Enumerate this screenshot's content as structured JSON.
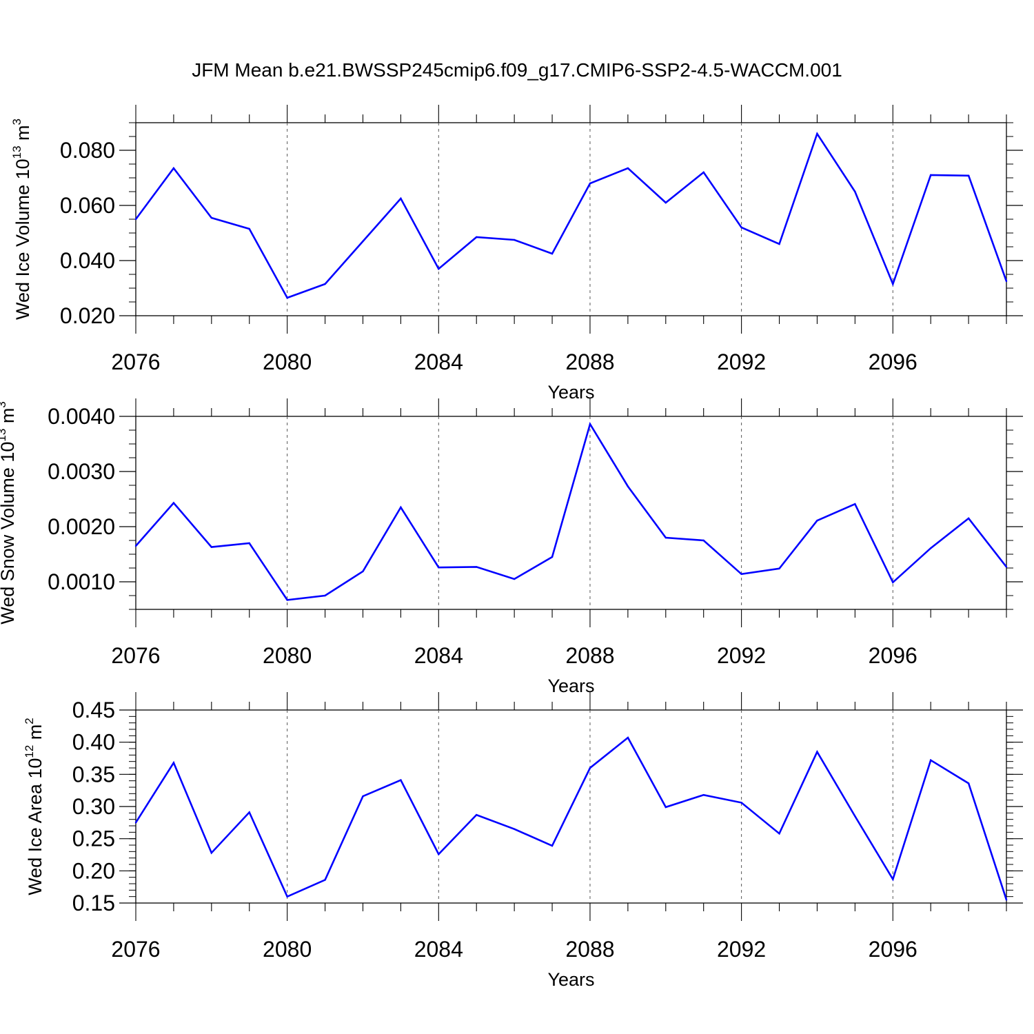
{
  "title": "JFM Mean b.e21.BWSSP245cmip6.f09_g17.CMIP6-SSP2-4.5-WACCM.001",
  "chart_data": [
    {
      "type": "line",
      "title": "",
      "xlabel": "Years",
      "ylabel": "Wed Ice Volume 10",
      "ylabel_exp": "13",
      "ylabel_unit": " m",
      "ylabel_unit_exp": "3",
      "xlim": [
        2076,
        2099
      ],
      "ylim": [
        0.02,
        0.09
      ],
      "x_ticks": [
        2076,
        2080,
        2084,
        2088,
        2092,
        2096
      ],
      "x_tick_labels": [
        "2076",
        "2080",
        "2084",
        "2088",
        "2092",
        "2096"
      ],
      "y_ticks": [
        0.02,
        0.04,
        0.06,
        0.08
      ],
      "y_tick_labels": [
        "0.020",
        "0.040",
        "0.060",
        "0.080"
      ],
      "y_minor_step": 0.005,
      "grid": "vertical dashed at major x ticks",
      "line_color": "#0000ff",
      "x": [
        2076,
        2077,
        2078,
        2079,
        2080,
        2081,
        2082,
        2083,
        2084,
        2085,
        2086,
        2087,
        2088,
        2089,
        2090,
        2091,
        2092,
        2093,
        2094,
        2095,
        2096,
        2097,
        2098,
        2099
      ],
      "values": [
        0.055,
        0.0735,
        0.0555,
        0.0515,
        0.0265,
        0.0315,
        0.047,
        0.0625,
        0.037,
        0.0485,
        0.0475,
        0.0425,
        0.068,
        0.0735,
        0.061,
        0.072,
        0.052,
        0.046,
        0.086,
        0.065,
        0.0315,
        0.071,
        0.0708,
        0.0325
      ]
    },
    {
      "type": "line",
      "title": "",
      "xlabel": "Years",
      "ylabel": "Wed Snow Volume 10",
      "ylabel_exp": "13",
      "ylabel_unit": " m",
      "ylabel_unit_exp": "3",
      "xlim": [
        2076,
        2099
      ],
      "ylim": [
        0.0005,
        0.004
      ],
      "x_ticks": [
        2076,
        2080,
        2084,
        2088,
        2092,
        2096
      ],
      "x_tick_labels": [
        "2076",
        "2080",
        "2084",
        "2088",
        "2092",
        "2096"
      ],
      "y_ticks": [
        0.001,
        0.002,
        0.003,
        0.004
      ],
      "y_tick_labels": [
        "0.0010",
        "0.0020",
        "0.0030",
        "0.0040"
      ],
      "y_minor_step": 0.00025,
      "grid": "vertical dashed at major x ticks",
      "line_color": "#0000ff",
      "x": [
        2076,
        2077,
        2078,
        2079,
        2080,
        2081,
        2082,
        2083,
        2084,
        2085,
        2086,
        2087,
        2088,
        2089,
        2090,
        2091,
        2092,
        2093,
        2094,
        2095,
        2096,
        2097,
        2098,
        2099
      ],
      "values": [
        0.00165,
        0.00243,
        0.00163,
        0.0017,
        0.00067,
        0.00075,
        0.00119,
        0.00235,
        0.00126,
        0.00127,
        0.00105,
        0.00145,
        0.00386,
        0.00273,
        0.0018,
        0.00175,
        0.00114,
        0.00124,
        0.00211,
        0.00241,
        0.00099,
        0.00161,
        0.00215,
        0.00127
      ]
    },
    {
      "type": "line",
      "title": "",
      "xlabel": "Years",
      "ylabel": "Wed Ice Area 10",
      "ylabel_exp": "12",
      "ylabel_unit": " m",
      "ylabel_unit_exp": "2",
      "xlim": [
        2076,
        2099
      ],
      "ylim": [
        0.15,
        0.45
      ],
      "x_ticks": [
        2076,
        2080,
        2084,
        2088,
        2092,
        2096
      ],
      "x_tick_labels": [
        "2076",
        "2080",
        "2084",
        "2088",
        "2092",
        "2096"
      ],
      "y_ticks": [
        0.15,
        0.2,
        0.25,
        0.3,
        0.35,
        0.4,
        0.45
      ],
      "y_tick_labels": [
        "0.15",
        "0.20",
        "0.25",
        "0.30",
        "0.35",
        "0.40",
        "0.45"
      ],
      "y_minor_step": 0.01,
      "grid": "vertical dashed at major x ticks",
      "line_color": "#0000ff",
      "x": [
        2076,
        2077,
        2078,
        2079,
        2080,
        2081,
        2082,
        2083,
        2084,
        2085,
        2086,
        2087,
        2088,
        2089,
        2090,
        2091,
        2092,
        2093,
        2094,
        2095,
        2096,
        2097,
        2098,
        2099
      ],
      "values": [
        0.275,
        0.368,
        0.228,
        0.291,
        0.16,
        0.186,
        0.316,
        0.341,
        0.226,
        0.287,
        0.265,
        0.239,
        0.36,
        0.407,
        0.299,
        0.318,
        0.306,
        0.258,
        0.385,
        0.285,
        0.187,
        0.372,
        0.336,
        0.155
      ]
    }
  ]
}
